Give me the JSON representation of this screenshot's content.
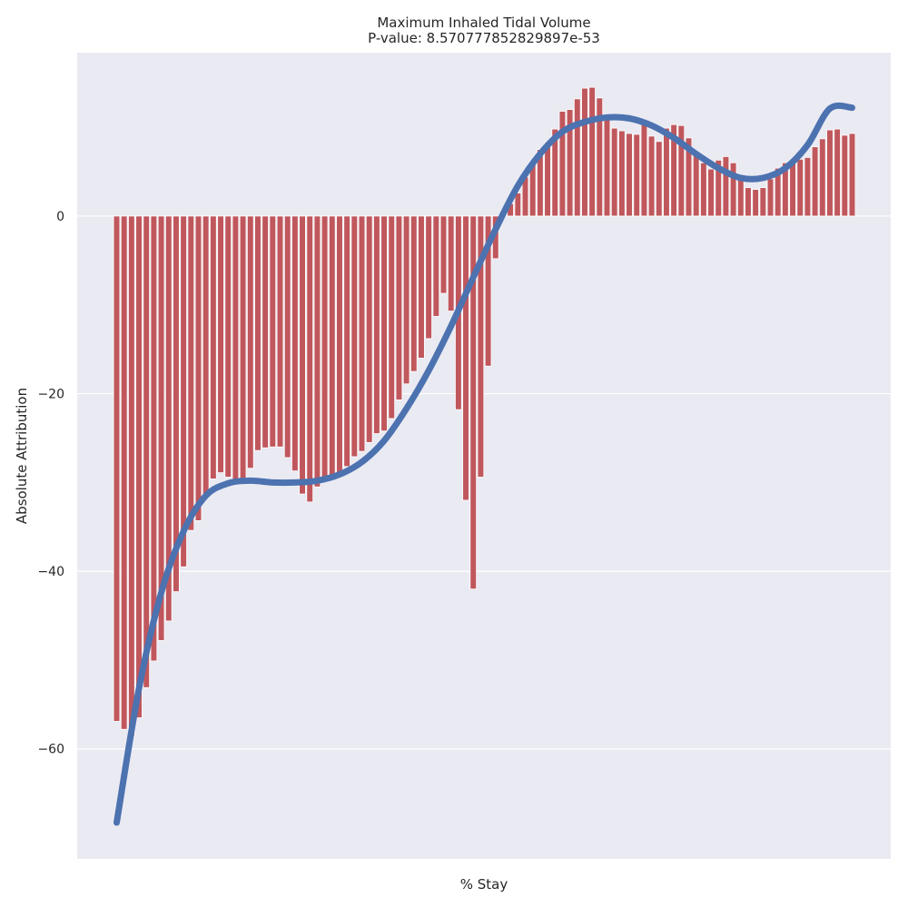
{
  "chart_data": {
    "type": "bar",
    "title": "Maximum Inhaled Tidal Volume",
    "subtitle": "P-value: 8.570777852829897e-53",
    "xlabel": "% Stay",
    "ylabel": "Absolute Attribution",
    "ylim": [
      -72.4,
      18.4
    ],
    "yticks": [
      0,
      -20,
      -40,
      -60
    ],
    "grid": true,
    "bar_color": "#c0575c",
    "line_color": "#4c72b0",
    "background_color": "#eaeaf2",
    "series": [
      {
        "type": "bar",
        "x": [
          1,
          2,
          3,
          4,
          5,
          6,
          7,
          8,
          9,
          10,
          11,
          12,
          13,
          14,
          15,
          16,
          17,
          18,
          19,
          20,
          21,
          22,
          23,
          24,
          25,
          26,
          27,
          28,
          29,
          30,
          31,
          32,
          33,
          34,
          35,
          36,
          37,
          38,
          39,
          40,
          41,
          42,
          43,
          44,
          45,
          46,
          47,
          48,
          49,
          50,
          51,
          52,
          53,
          54,
          55,
          56,
          57,
          58,
          59,
          60,
          61,
          62,
          63,
          64,
          65,
          66,
          67,
          68,
          69,
          70,
          71,
          72,
          73,
          74,
          75,
          76,
          77,
          78,
          79,
          80,
          81,
          82,
          83,
          84,
          85,
          86,
          87,
          88,
          89,
          90,
          91,
          92,
          93,
          94,
          95,
          96,
          97,
          98,
          99,
          100
        ],
        "values": [
          -56.9,
          -57.8,
          -58.6,
          -56.5,
          -53.1,
          -50.1,
          -47.8,
          -45.6,
          -42.3,
          -39.5,
          -35.4,
          -34.3,
          -31.4,
          -29.6,
          -28.9,
          -29.4,
          -29.8,
          -29.8,
          -28.4,
          -26.4,
          -26.1,
          -26.0,
          -26.0,
          -27.2,
          -28.7,
          -31.3,
          -32.2,
          -30.5,
          -29.8,
          -29.5,
          -29.3,
          -28.2,
          -27.1,
          -26.5,
          -25.5,
          -24.5,
          -24.2,
          -22.8,
          -20.7,
          -18.9,
          -17.5,
          -16.0,
          -13.8,
          -11.3,
          -8.7,
          -10.7,
          -21.8,
          -32.0,
          -42.0,
          -29.4,
          -16.9,
          -4.8,
          0.1,
          1.4,
          2.6,
          4.4,
          6.1,
          7.5,
          8.3,
          9.8,
          11.8,
          12.0,
          13.2,
          14.4,
          14.5,
          13.3,
          11.4,
          9.9,
          9.6,
          9.3,
          9.2,
          10.4,
          9.0,
          8.4,
          9.9,
          10.3,
          10.2,
          8.8,
          7.1,
          6.0,
          5.3,
          6.3,
          6.7,
          6.0,
          4.1,
          3.2,
          3.0,
          3.2,
          4.2,
          5.4,
          6.0,
          6.3,
          6.4,
          6.6,
          7.8,
          8.7,
          9.7,
          9.8,
          9.1,
          9.3
        ]
      },
      {
        "type": "line",
        "name": "",
        "x": [
          1,
          4,
          7,
          10,
          13,
          16,
          19,
          22,
          25,
          28,
          31,
          34,
          37,
          40,
          43,
          46,
          49,
          52,
          55,
          58,
          61,
          64,
          67,
          70,
          73,
          76,
          79,
          82,
          85,
          88,
          91,
          94,
          97,
          100
        ],
        "values": [
          -68.3,
          -53.2,
          -42.4,
          -35.5,
          -31.5,
          -30.1,
          -29.8,
          -30.0,
          -30.0,
          -29.8,
          -29.1,
          -27.7,
          -25.3,
          -21.7,
          -17.4,
          -12.4,
          -6.9,
          -1.5,
          3.4,
          7.0,
          9.5,
          10.6,
          11.1,
          11.0,
          10.2,
          8.8,
          7.0,
          5.4,
          4.3,
          4.3,
          5.4,
          8.0,
          12.1,
          12.2
        ]
      }
    ]
  }
}
